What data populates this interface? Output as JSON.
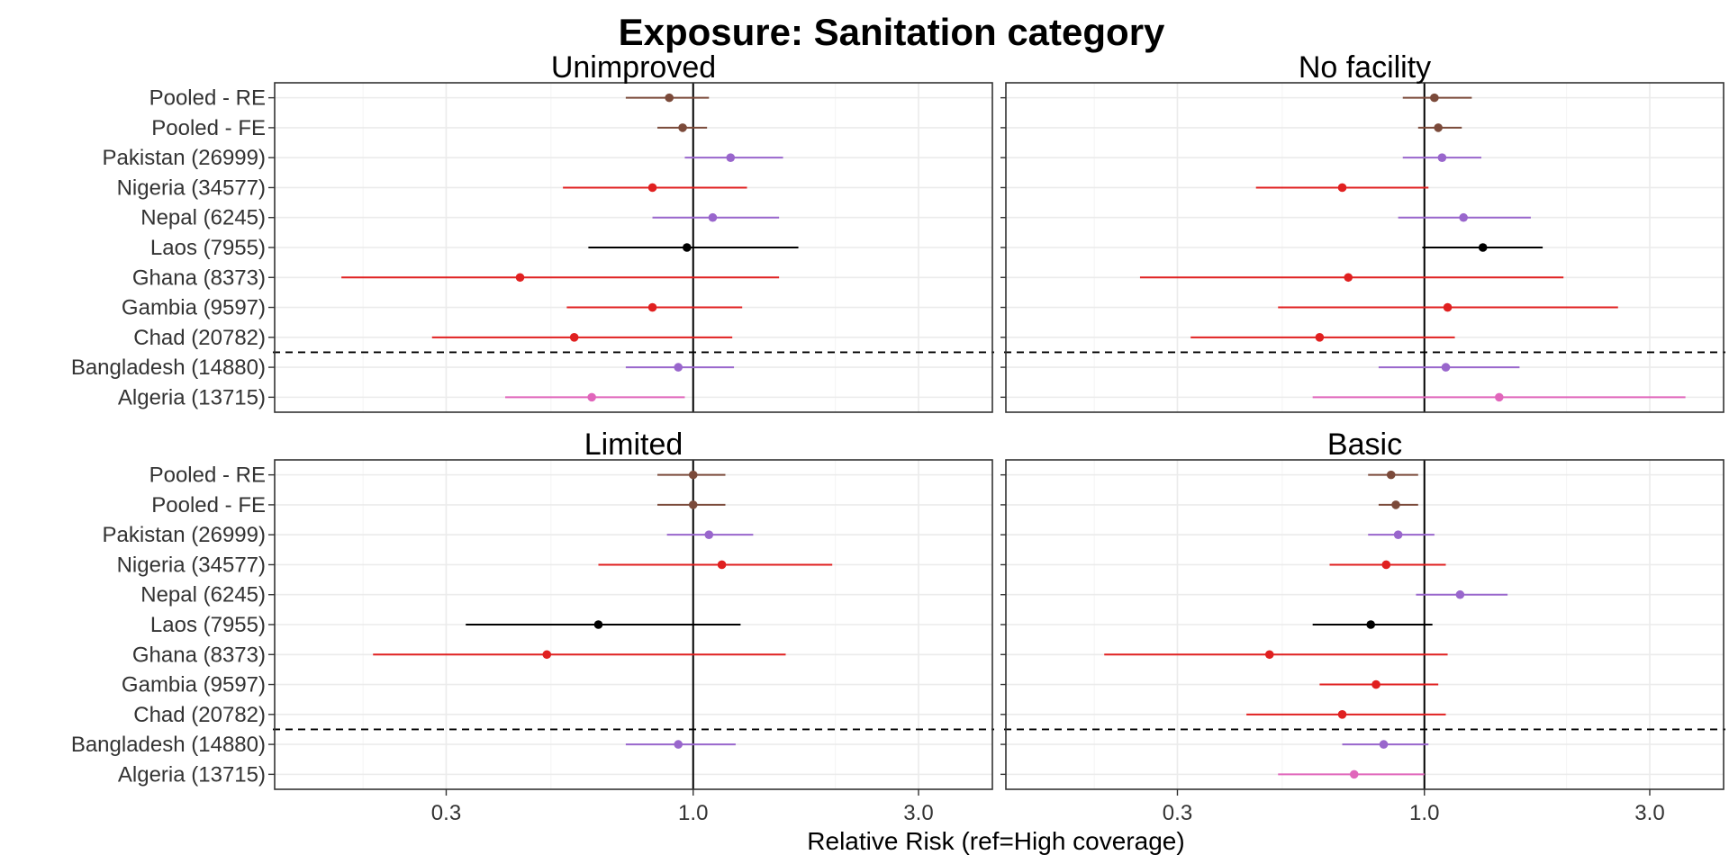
{
  "chart_data": {
    "type": "forest",
    "title": "Exposure: Sanitation category",
    "xlabel": "Relative Risk (ref=High coverage)",
    "xscale": "log",
    "xlim": [
      0.13,
      4.3
    ],
    "xticks": [
      0.3,
      1.0,
      3.0
    ],
    "xtick_labels": [
      "0.3",
      "1.0",
      "3.0"
    ],
    "reference_line": 1.0,
    "rows": [
      "Pooled - RE",
      "Pooled - FE",
      "Pakistan (26999)",
      "Nigeria (34577)",
      "Nepal (6245)",
      "Laos (7955)",
      "Ghana (8373)",
      "Gambia (9597)",
      "Chad (20782)",
      "Bangladesh (14880)",
      "Algeria (13715)"
    ],
    "row_colors": [
      "#7b4a3a",
      "#7b4a3a",
      "#9966cc",
      "#e02020",
      "#9966cc",
      "#000000",
      "#e02020",
      "#e02020",
      "#e02020",
      "#9966cc",
      "#e066bb"
    ],
    "separator_after_row": "Chad (20782)",
    "grid": true,
    "legend": "none",
    "panels": [
      {
        "title": "Unimproved",
        "estimates": [
          {
            "country": "Pooled - RE",
            "rr": 0.89,
            "lo": 0.72,
            "hi": 1.08
          },
          {
            "country": "Pooled - FE",
            "rr": 0.95,
            "lo": 0.84,
            "hi": 1.07
          },
          {
            "country": "Pakistan (26999)",
            "rr": 1.2,
            "lo": 0.96,
            "hi": 1.55
          },
          {
            "country": "Nigeria (34577)",
            "rr": 0.82,
            "lo": 0.53,
            "hi": 1.3
          },
          {
            "country": "Nepal (6245)",
            "rr": 1.1,
            "lo": 0.82,
            "hi": 1.52
          },
          {
            "country": "Laos (7955)",
            "rr": 0.97,
            "lo": 0.6,
            "hi": 1.67
          },
          {
            "country": "Ghana (8373)",
            "rr": 0.43,
            "lo": 0.18,
            "hi": 1.52
          },
          {
            "country": "Gambia (9597)",
            "rr": 0.82,
            "lo": 0.54,
            "hi": 1.27
          },
          {
            "country": "Chad (20782)",
            "rr": 0.56,
            "lo": 0.28,
            "hi": 1.21
          },
          {
            "country": "Bangladesh (14880)",
            "rr": 0.93,
            "lo": 0.72,
            "hi": 1.22
          },
          {
            "country": "Algeria (13715)",
            "rr": 0.61,
            "lo": 0.4,
            "hi": 0.96
          }
        ]
      },
      {
        "title": "No facility",
        "estimates": [
          {
            "country": "Pooled - RE",
            "rr": 1.05,
            "lo": 0.9,
            "hi": 1.26
          },
          {
            "country": "Pooled - FE",
            "rr": 1.07,
            "lo": 0.97,
            "hi": 1.2
          },
          {
            "country": "Pakistan (26999)",
            "rr": 1.09,
            "lo": 0.9,
            "hi": 1.32
          },
          {
            "country": "Nigeria (34577)",
            "rr": 0.67,
            "lo": 0.44,
            "hi": 1.02
          },
          {
            "country": "Nepal (6245)",
            "rr": 1.21,
            "lo": 0.88,
            "hi": 1.68
          },
          {
            "country": "Laos (7955)",
            "rr": 1.33,
            "lo": 0.99,
            "hi": 1.78
          },
          {
            "country": "Ghana (8373)",
            "rr": 0.69,
            "lo": 0.25,
            "hi": 1.97
          },
          {
            "country": "Gambia (9597)",
            "rr": 1.12,
            "lo": 0.49,
            "hi": 2.57
          },
          {
            "country": "Chad (20782)",
            "rr": 0.6,
            "lo": 0.32,
            "hi": 1.16
          },
          {
            "country": "Bangladesh (14880)",
            "rr": 1.11,
            "lo": 0.8,
            "hi": 1.59
          },
          {
            "country": "Algeria (13715)",
            "rr": 1.44,
            "lo": 0.58,
            "hi": 3.57
          }
        ]
      },
      {
        "title": "Limited",
        "estimates": [
          {
            "country": "Pooled - RE",
            "rr": 1.0,
            "lo": 0.84,
            "hi": 1.17
          },
          {
            "country": "Pooled - FE",
            "rr": 1.0,
            "lo": 0.84,
            "hi": 1.17
          },
          {
            "country": "Pakistan (26999)",
            "rr": 1.08,
            "lo": 0.88,
            "hi": 1.34
          },
          {
            "country": "Nigeria (34577)",
            "rr": 1.15,
            "lo": 0.63,
            "hi": 1.97
          },
          {
            "country": "Nepal (6245)",
            "rr": null,
            "lo": null,
            "hi": null
          },
          {
            "country": "Laos (7955)",
            "rr": 0.63,
            "lo": 0.33,
            "hi": 1.26
          },
          {
            "country": "Ghana (8373)",
            "rr": 0.49,
            "lo": 0.21,
            "hi": 1.57
          },
          {
            "country": "Gambia (9597)",
            "rr": null,
            "lo": null,
            "hi": null
          },
          {
            "country": "Chad (20782)",
            "rr": null,
            "lo": null,
            "hi": null
          },
          {
            "country": "Bangladesh (14880)",
            "rr": 0.93,
            "lo": 0.72,
            "hi": 1.23
          },
          {
            "country": "Algeria (13715)",
            "rr": null,
            "lo": null,
            "hi": null
          }
        ]
      },
      {
        "title": "Basic",
        "estimates": [
          {
            "country": "Pooled - RE",
            "rr": 0.85,
            "lo": 0.76,
            "hi": 0.97
          },
          {
            "country": "Pooled - FE",
            "rr": 0.87,
            "lo": 0.8,
            "hi": 0.97
          },
          {
            "country": "Pakistan (26999)",
            "rr": 0.88,
            "lo": 0.76,
            "hi": 1.05
          },
          {
            "country": "Nigeria (34577)",
            "rr": 0.83,
            "lo": 0.63,
            "hi": 1.11
          },
          {
            "country": "Nepal (6245)",
            "rr": 1.19,
            "lo": 0.96,
            "hi": 1.5
          },
          {
            "country": "Laos (7955)",
            "rr": 0.77,
            "lo": 0.58,
            "hi": 1.04
          },
          {
            "country": "Ghana (8373)",
            "rr": 0.47,
            "lo": 0.21,
            "hi": 1.12
          },
          {
            "country": "Gambia (9597)",
            "rr": 0.79,
            "lo": 0.6,
            "hi": 1.07
          },
          {
            "country": "Chad (20782)",
            "rr": 0.67,
            "lo": 0.42,
            "hi": 1.11
          },
          {
            "country": "Bangladesh (14880)",
            "rr": 0.82,
            "lo": 0.67,
            "hi": 1.02
          },
          {
            "country": "Algeria (13715)",
            "rr": 0.71,
            "lo": 0.49,
            "hi": 1.0
          }
        ]
      }
    ]
  }
}
